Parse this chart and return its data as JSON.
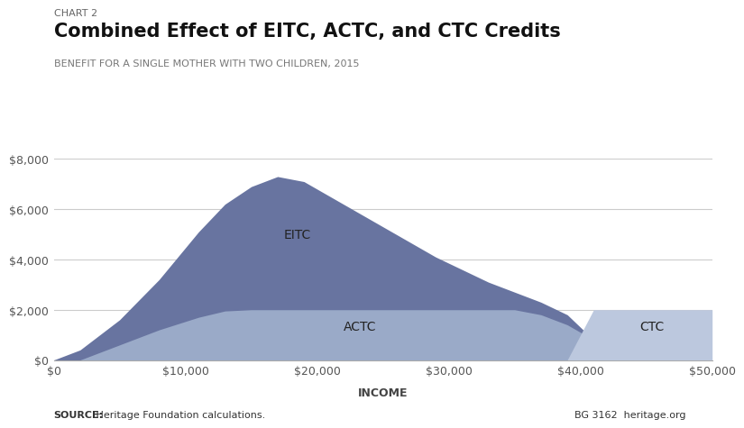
{
  "chart_label": "CHART 2",
  "title": "Combined Effect of EITC, ACTC, and CTC Credits",
  "subtitle": "BENEFIT FOR A SINGLE MOTHER WITH TWO CHILDREN, 2015",
  "xlabel": "INCOME",
  "source_bold": "SOURCE:",
  "source_rest": " Heritage Foundation calculations.",
  "bg_label": "BG 3162  heritage.org",
  "background_color": "#ffffff",
  "eitc_color": "#6874a0",
  "actc_color": "#9aaac8",
  "ctc_color": "#bcc8de",
  "income": [
    0,
    2000,
    5000,
    8000,
    11000,
    13000,
    15000,
    17000,
    19000,
    21000,
    23000,
    25000,
    27000,
    29000,
    31000,
    33000,
    35000,
    37000,
    39000,
    41000,
    43000,
    44000,
    45000,
    50000
  ],
  "eitc": [
    0,
    400,
    1600,
    3200,
    5100,
    6200,
    6900,
    7300,
    7100,
    6500,
    5900,
    5300,
    4700,
    4100,
    3600,
    3100,
    2700,
    2300,
    1800,
    800,
    50,
    0,
    0,
    0
  ],
  "actc": [
    0,
    0,
    600,
    1200,
    1700,
    1950,
    2000,
    2000,
    2000,
    2000,
    2000,
    2000,
    2000,
    2000,
    2000,
    2000,
    2000,
    1800,
    1400,
    800,
    200,
    0,
    0,
    0
  ],
  "ctc": [
    0,
    0,
    0,
    0,
    0,
    0,
    0,
    0,
    0,
    0,
    0,
    0,
    0,
    0,
    0,
    0,
    0,
    0,
    0,
    2000,
    2000,
    2000,
    2000,
    2000
  ],
  "ylim": [
    0,
    8000
  ],
  "xlim": [
    0,
    50000
  ],
  "yticks": [
    0,
    2000,
    4000,
    6000,
    8000
  ],
  "xticks": [
    0,
    10000,
    20000,
    30000,
    40000,
    50000
  ]
}
